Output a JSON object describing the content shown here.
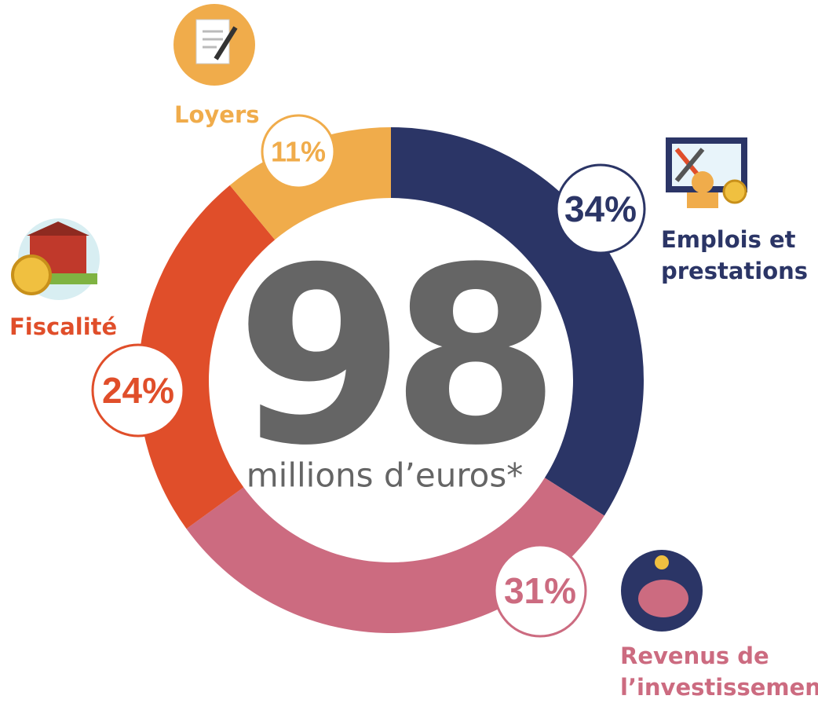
{
  "chart_data": {
    "type": "donut",
    "categories": [
      "Emplois et prestations",
      "Revenus de l’investissement",
      "Fiscalité",
      "Loyers"
    ],
    "values": [
      34,
      31,
      24,
      11
    ],
    "value_labels": [
      "34%",
      "31%",
      "24%",
      "11%"
    ],
    "colors": [
      "#2b3566",
      "#cc6b80",
      "#e04e2a",
      "#f0ac4b"
    ],
    "center_value": 98,
    "center_label": "millions d’euros*"
  }
}
